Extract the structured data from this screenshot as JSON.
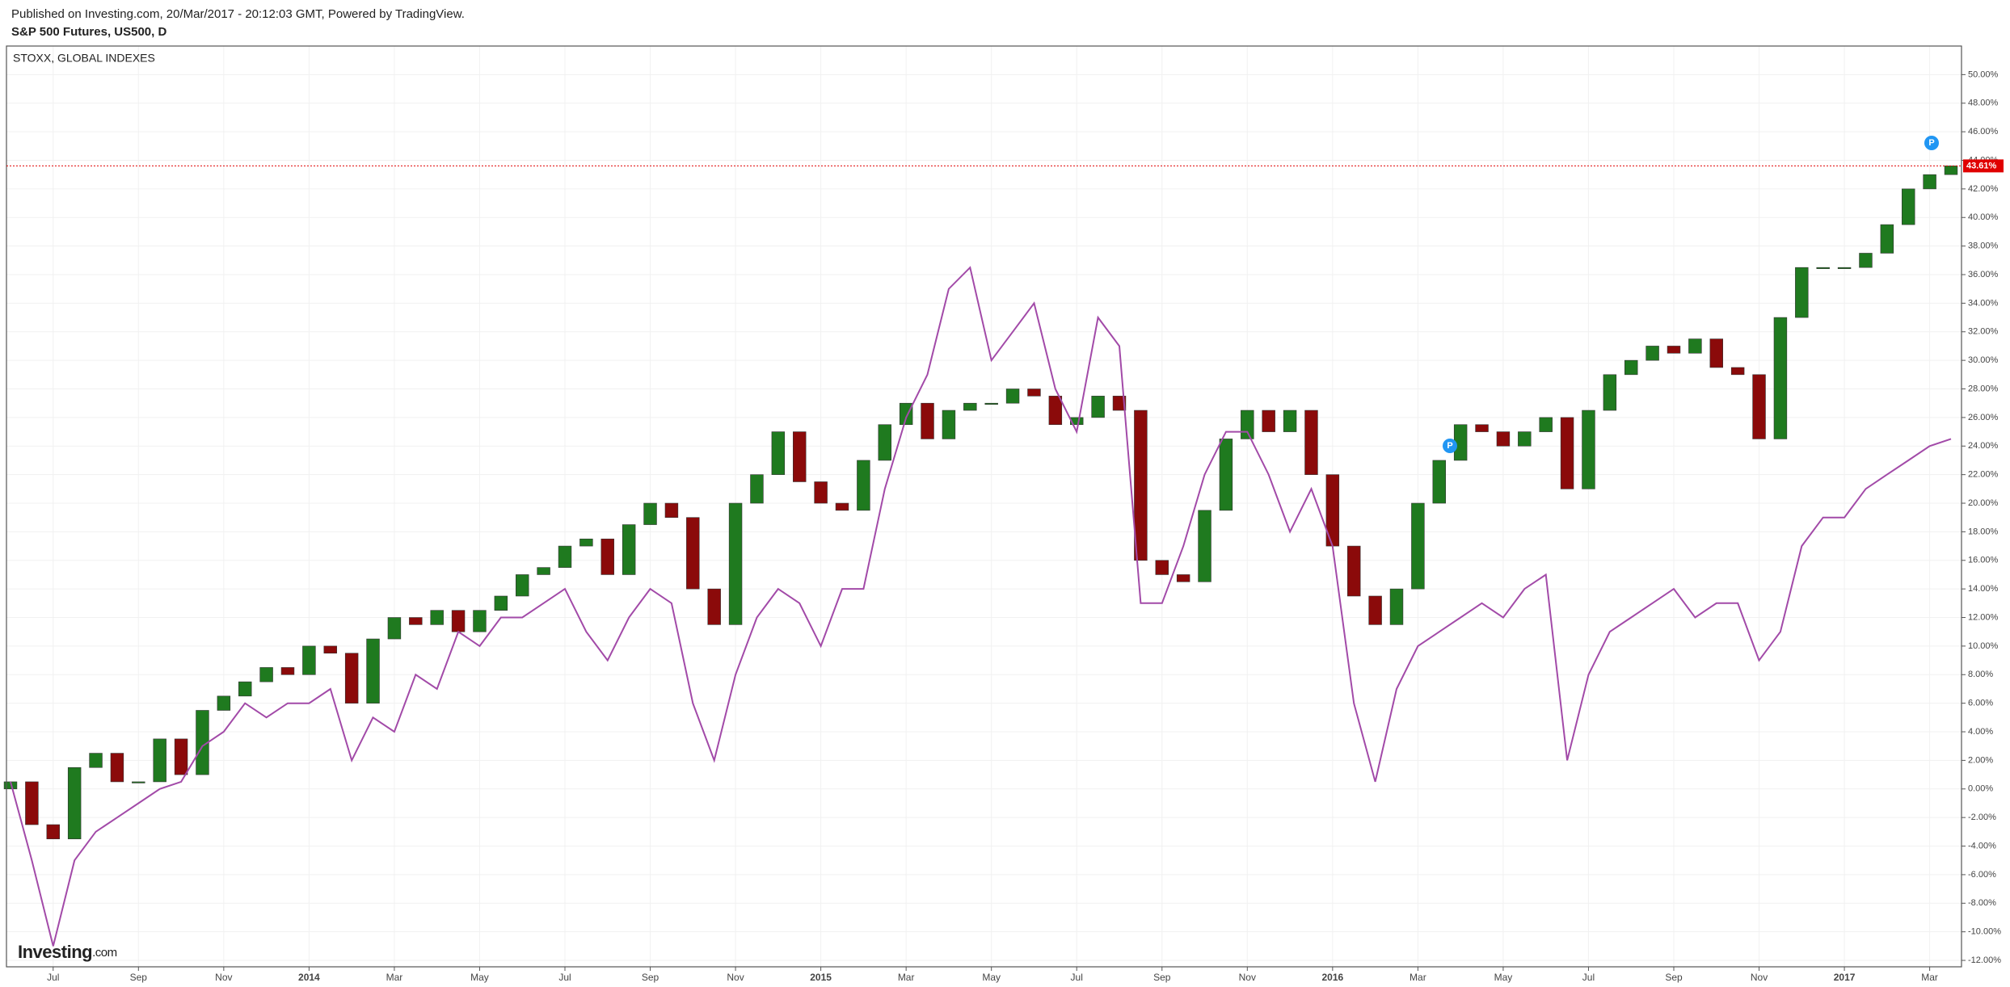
{
  "chart_data": {
    "type": "candlestick",
    "publish_note": "Published on Investing.com, 20/Mar/2017 - 20:12:03 GMT, Powered by TradingView.",
    "title": "S&P 500 Futures, US500, D",
    "logo": "Investing",
    "logo_suffix": ".com",
    "event_marker": "P",
    "categories": [
      null,
      null,
      "Jul",
      null,
      null,
      null,
      "Sep",
      null,
      null,
      null,
      "Nov",
      null,
      null,
      null,
      "2014",
      null,
      null,
      null,
      "Mar",
      null,
      null,
      null,
      "May",
      null,
      null,
      null,
      "Jul",
      null,
      null,
      null,
      "Sep",
      null,
      null,
      null,
      "Nov",
      null,
      null,
      null,
      "2015",
      null,
      null,
      null,
      "Mar",
      null,
      null,
      null,
      "May",
      null,
      null,
      null,
      "Jul",
      null,
      null,
      null,
      "Sep",
      null,
      null,
      null,
      "Nov",
      null,
      null,
      null,
      "2016",
      null,
      null,
      null,
      "Mar",
      null,
      null,
      null,
      "May",
      null,
      null,
      null,
      "Jul",
      null,
      null,
      null,
      "Sep",
      null,
      null,
      null,
      "Nov",
      null,
      null,
      null,
      "2017",
      null,
      null,
      null,
      "Mar",
      null
    ],
    "series": [
      {
        "type": "candlestick",
        "up_color": "#1f7a1f",
        "down_color": "#8b0a0a",
        "open": [
          0,
          0.5,
          -2.5,
          -3.5,
          1.5,
          2.5,
          0.5,
          0.5,
          3.5,
          1.0,
          5.5,
          6.5,
          7.5,
          8.5,
          8.0,
          10.0,
          9.5,
          6.0,
          10.5,
          12.0,
          11.5,
          12.5,
          11.0,
          12.5,
          13.5,
          15.0,
          15.5,
          17.0,
          17.5,
          15.0,
          18.5,
          20.0,
          19.0,
          14.0,
          11.5,
          20.0,
          22.0,
          25.0,
          21.5,
          20.0,
          19.5,
          23.0,
          25.5,
          27.0,
          24.5,
          26.5,
          27.0,
          27.0,
          28.0,
          27.5,
          25.5,
          26.0,
          27.5,
          26.5,
          16.0,
          15.0,
          14.5,
          19.5,
          24.5,
          26.5,
          25.0,
          26.5,
          22.0,
          17.0,
          13.5,
          11.5,
          14.0,
          20.0,
          23.0,
          25.5,
          25.0,
          24.0,
          25.0,
          26.0,
          21.0,
          26.5,
          29.0,
          30.0,
          31.0,
          30.5,
          31.5,
          29.5,
          29.0,
          24.5,
          33.0,
          36.5,
          36.5,
          36.5,
          37.5,
          39.5,
          42.0,
          43.0
        ],
        "close": [
          0.5,
          -2.5,
          -3.5,
          1.5,
          2.5,
          0.5,
          0.5,
          3.5,
          1.0,
          5.5,
          6.5,
          7.5,
          8.5,
          8.0,
          10.0,
          9.5,
          6.0,
          10.5,
          12.0,
          11.5,
          12.5,
          11.0,
          12.5,
          13.5,
          15.0,
          15.5,
          17.0,
          17.5,
          15.0,
          18.5,
          20.0,
          19.0,
          14.0,
          11.5,
          20.0,
          22.0,
          25.0,
          21.5,
          20.0,
          19.5,
          23.0,
          25.5,
          27.0,
          24.5,
          26.5,
          27.0,
          27.0,
          28.0,
          27.5,
          25.5,
          26.0,
          27.5,
          26.5,
          16.0,
          15.0,
          14.5,
          19.5,
          24.5,
          26.5,
          25.0,
          26.5,
          22.0,
          17.0,
          13.5,
          11.5,
          14.0,
          20.0,
          23.0,
          25.5,
          25.0,
          24.0,
          25.0,
          26.0,
          21.0,
          26.5,
          29.0,
          30.0,
          31.0,
          30.5,
          31.5,
          29.5,
          29.0,
          24.5,
          33.0,
          36.5,
          36.5,
          36.5,
          37.5,
          39.5,
          42.0,
          43.0,
          43.61
        ]
      },
      {
        "type": "line",
        "name": "STOXX, GLOBAL INDEXES",
        "color": "#a24aa8",
        "values": [
          0.5,
          -5,
          -11,
          -5,
          -3,
          -2,
          -1,
          0,
          0.5,
          3,
          4,
          6,
          5,
          6,
          6,
          7,
          2,
          5,
          4,
          8,
          7,
          11,
          10,
          12,
          12,
          13,
          14,
          11,
          9,
          12,
          14,
          13,
          6,
          2,
          8,
          12,
          14,
          13,
          10,
          14,
          14,
          21,
          26,
          29,
          35,
          36.5,
          30,
          32,
          34,
          28,
          25,
          33,
          31,
          13,
          13,
          17,
          22,
          25,
          25,
          22,
          18,
          21,
          17,
          6,
          0.5,
          7,
          10,
          11,
          12,
          13,
          12,
          14,
          15,
          2,
          8,
          11,
          12,
          13,
          14,
          12,
          13,
          13,
          9,
          11,
          17,
          19,
          19,
          21,
          22,
          23,
          24,
          24.5
        ]
      }
    ],
    "last_price": {
      "value": 43.61,
      "label": "43.61%",
      "color": "#e00000"
    },
    "ylim": [
      -12.45,
      52.0
    ],
    "yticks": [
      {
        "value": -12,
        "label": "-12.00%"
      },
      {
        "value": -10,
        "label": "-10.00%"
      },
      {
        "value": -8,
        "label": "-8.00%"
      },
      {
        "value": -6,
        "label": "-6.00%"
      },
      {
        "value": -4,
        "label": "-4.00%"
      },
      {
        "value": -2,
        "label": "-2.00%"
      },
      {
        "value": 0,
        "label": "0.00%"
      },
      {
        "value": 2,
        "label": "2.00%"
      },
      {
        "value": 4,
        "label": "4.00%"
      },
      {
        "value": 6,
        "label": "6.00%"
      },
      {
        "value": 8,
        "label": "8.00%"
      },
      {
        "value": 10,
        "label": "10.00%"
      },
      {
        "value": 12,
        "label": "12.00%"
      },
      {
        "value": 14,
        "label": "14.00%"
      },
      {
        "value": 16,
        "label": "16.00%"
      },
      {
        "value": 18,
        "label": "18.00%"
      },
      {
        "value": 20,
        "label": "20.00%"
      },
      {
        "value": 22,
        "label": "22.00%"
      },
      {
        "value": 24,
        "label": "24.00%"
      },
      {
        "value": 26,
        "label": "26.00%"
      },
      {
        "value": 28,
        "label": "28.00%"
      },
      {
        "value": 30,
        "label": "30.00%"
      },
      {
        "value": 32,
        "label": "32.00%"
      },
      {
        "value": 34,
        "label": "34.00%"
      },
      {
        "value": 36,
        "label": "36.00%"
      },
      {
        "value": 38,
        "label": "38.00%"
      },
      {
        "value": 40,
        "label": "40.00%"
      },
      {
        "value": 42,
        "label": "42.00%"
      },
      {
        "value": 44,
        "label": "44.00%"
      },
      {
        "value": 46,
        "label": "46.00%"
      },
      {
        "value": 48,
        "label": "48.00%"
      },
      {
        "value": 50,
        "label": "50.00%"
      }
    ],
    "grid": true
  }
}
